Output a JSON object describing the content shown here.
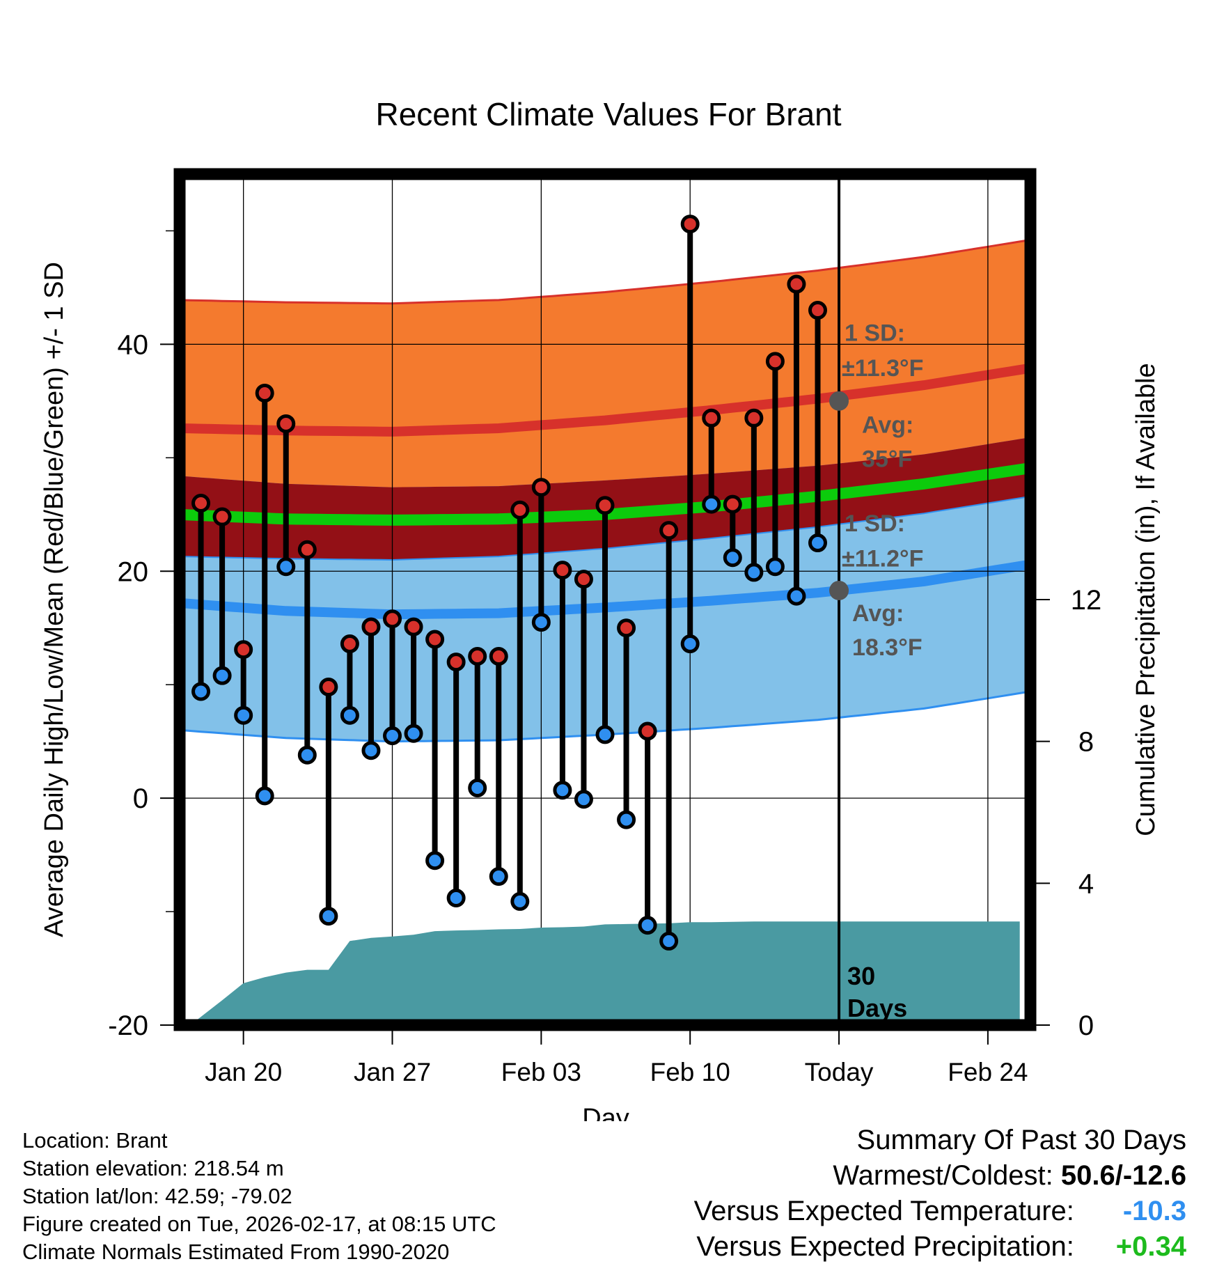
{
  "chart_data": {
    "type": "line",
    "title": "Recent Climate Values For Brant",
    "xlabel": "Day",
    "ylabel_left": "Average Daily High/Low/Mean (Red/Blue/Green) +/- 1 SD",
    "ylabel_right": "Cumulative Precipitation (in), If Available",
    "ylim": [
      -20,
      55
    ],
    "y2lim": [
      0,
      24
    ],
    "x_ticks": [
      {
        "day": 3,
        "label": "Jan 20"
      },
      {
        "day": 10,
        "label": "Jan 27"
      },
      {
        "day": 17,
        "label": "Feb 03"
      },
      {
        "day": 24,
        "label": "Feb 10"
      },
      {
        "day": 31,
        "label": "Today"
      },
      {
        "day": 38,
        "label": "Feb 24"
      }
    ],
    "y_ticks": [
      -20,
      0,
      20,
      40
    ],
    "y2_ticks": [
      0,
      4,
      8,
      12
    ],
    "normal_days": [
      0,
      5,
      10,
      15,
      20,
      25,
      30,
      35,
      40
    ],
    "normal_high": [
      32.6,
      32.4,
      32.3,
      32.6,
      33.3,
      34.2,
      35.2,
      36.4,
      37.9
    ],
    "high_sd": 11.3,
    "normal_low": [
      17.2,
      16.5,
      16.2,
      16.3,
      16.8,
      17.4,
      18.1,
      19.1,
      20.6
    ],
    "low_sd": 11.2,
    "normal_mean": [
      25.0,
      24.6,
      24.5,
      24.6,
      25.0,
      25.7,
      26.6,
      27.7,
      29.1
    ],
    "daily": {
      "day": [
        1,
        2,
        3,
        4,
        5,
        6,
        7,
        8,
        9,
        10,
        11,
        12,
        13,
        14,
        15,
        16,
        17,
        18,
        19,
        20,
        21,
        22,
        23,
        24,
        25,
        26,
        27,
        28,
        29,
        30
      ],
      "high": [
        26.0,
        24.8,
        13.1,
        35.7,
        33.0,
        21.9,
        9.8,
        13.6,
        15.1,
        15.8,
        15.1,
        14.0,
        12.0,
        12.5,
        12.5,
        25.4,
        27.4,
        20.1,
        19.3,
        25.8,
        15.0,
        5.9,
        23.6,
        50.6,
        33.5,
        25.9,
        33.5,
        38.5,
        45.3,
        43.0
      ],
      "low": [
        9.4,
        10.8,
        7.3,
        0.2,
        20.4,
        3.8,
        -10.4,
        7.3,
        4.2,
        5.5,
        5.7,
        -5.5,
        -8.8,
        0.9,
        -6.9,
        -9.1,
        15.5,
        0.7,
        -0.1,
        5.6,
        -1.9,
        -11.2,
        -12.6,
        13.6,
        25.9,
        21.2,
        19.9,
        20.4,
        17.8,
        22.5
      ]
    },
    "precip": {
      "day": [
        0.5,
        2.0,
        3.0,
        4.0,
        5.0,
        6.0,
        7.0,
        8.0,
        9.0,
        10.0,
        11.0,
        12.0,
        13.0,
        14.0,
        15.0,
        16.0,
        17.0,
        18.0,
        19.0,
        20.0,
        21.0,
        22.0,
        23.0,
        24.0,
        25.0,
        26.0,
        27.0,
        28.0,
        29.0,
        30.0,
        31.0,
        39.5
      ],
      "cumulative": [
        0.0,
        0.7,
        1.18,
        1.35,
        1.48,
        1.56,
        1.56,
        2.37,
        2.46,
        2.5,
        2.55,
        2.65,
        2.67,
        2.68,
        2.7,
        2.71,
        2.75,
        2.76,
        2.78,
        2.84,
        2.85,
        2.86,
        2.87,
        2.9,
        2.9,
        2.91,
        2.92,
        2.92,
        2.92,
        2.92,
        2.92,
        2.92
      ]
    },
    "annotations": {
      "high_sd_label_1": "1 SD:",
      "high_sd_label_2": "±11.3°F",
      "high_avg_label_1": "Avg:",
      "high_avg_label_2": "35°F",
      "high_avg_value": 35,
      "low_sd_label_1": "1 SD:",
      "low_sd_label_2": "±11.2°F",
      "low_avg_label_1": "Avg:",
      "low_avg_label_2": "18.3°F",
      "low_avg_value": 18.3,
      "days_label_1": "30",
      "days_label_2": "Days"
    },
    "colors": {
      "high_band": "#f47a2e",
      "high_line": "#d7312b",
      "low_band": "#82c1e9",
      "low_line": "#2f8ff0",
      "mean_band": "#931016",
      "mean_line": "#0ccb0c",
      "precip": "#4a9aa2",
      "high_dot": "#d7312b",
      "low_dot": "#2f8ff0",
      "avg_dot": "#555555"
    }
  },
  "footer": {
    "location": "Location: Brant",
    "elevation": "Station elevation: 218.54 m",
    "latlon": "Station lat/lon: 42.59; -79.02",
    "created": "Figure created on Tue, 2026-02-17, at 08:15 UTC",
    "normals": "Climate Normals Estimated From 1990-2020"
  },
  "summary": {
    "heading": "Summary Of Past 30 Days",
    "warmest_label": "Warmest/Coldest:",
    "warmest_value": "50.6/-12.6",
    "temp_label": "Versus Expected Temperature:",
    "temp_value": "-10.3",
    "temp_color": "#2f8ff0",
    "precip_label": "Versus Expected Precipitation:",
    "precip_value": "+0.34",
    "precip_color": "#1dbb1d"
  }
}
